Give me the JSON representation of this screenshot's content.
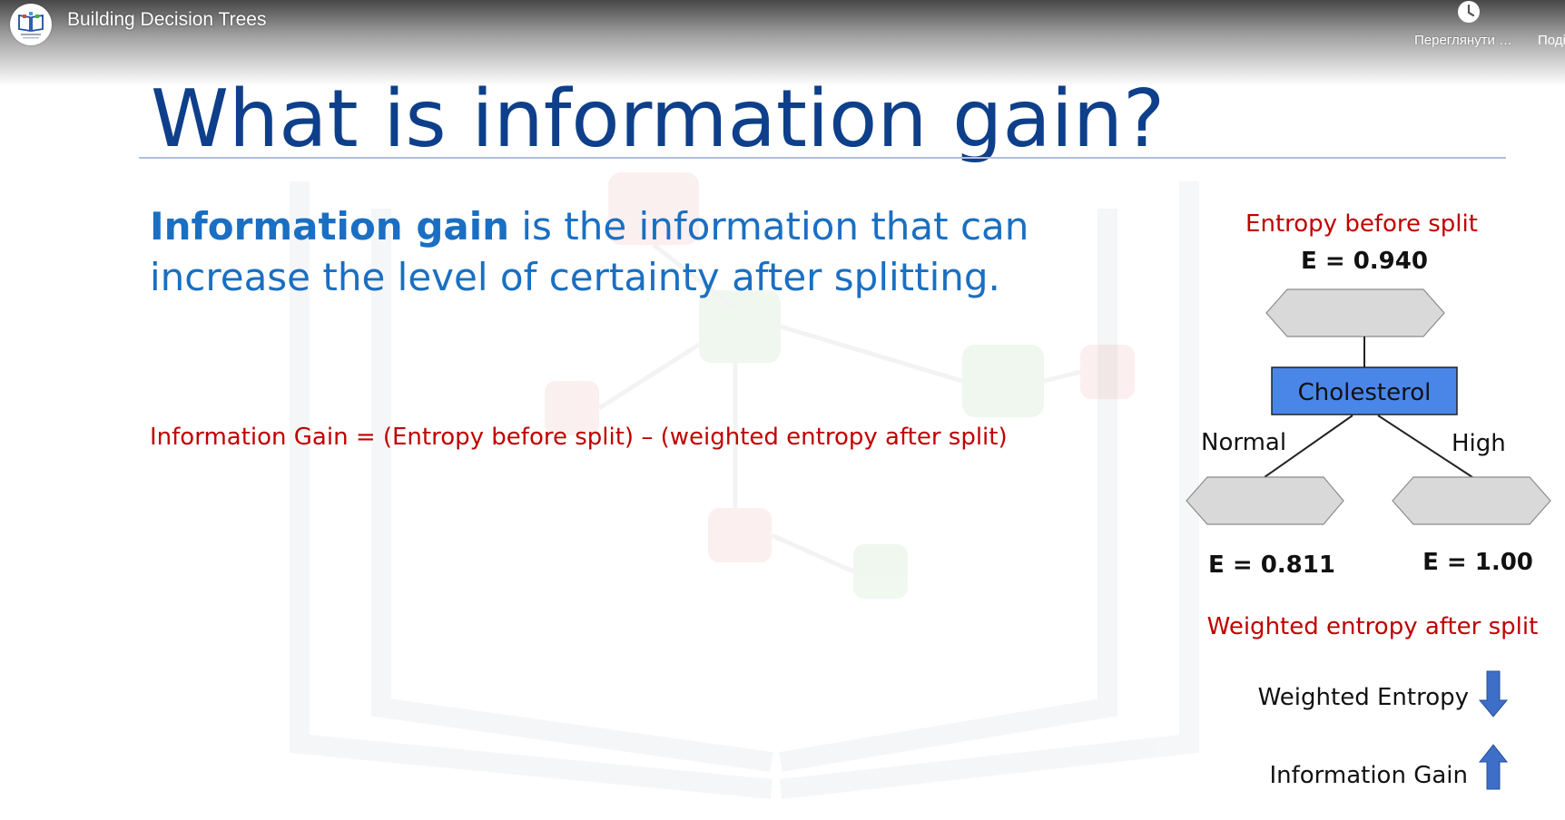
{
  "player": {
    "video_title": "Building Decision Trees",
    "watch_later_label": "Переглянути пізніше",
    "share_label": "Поділитися"
  },
  "slide": {
    "title": "What is information gain?",
    "definition_bold": "Information gain",
    "definition_rest": " is the information that can increase the level of certainty after splitting.",
    "formula": "Information Gain = (Entropy before split) – (weighted entropy after split)",
    "diagram": {
      "entropy_before_label": "Entropy before split",
      "entropy_before_value": "E = 0.940",
      "node_label": "Cholesterol",
      "branch_left": "Normal",
      "branch_right": "High",
      "left_entropy": "E = 0.811",
      "right_entropy": "E = 1.00",
      "weighted_after_label": "Weighted entropy after split",
      "weighted_entropy_label": "Weighted Entropy",
      "info_gain_label": "Information Gain"
    }
  },
  "colors": {
    "title": "#0e3f8a",
    "body_text": "#1a6fc2",
    "accent_red": "#c00000",
    "node_fill": "#4a86e8",
    "hexagon_fill": "#d9d9d9",
    "arrow": "#3d6fc8"
  },
  "icons": {
    "channel_logo": "book-logo-icon",
    "watch_later": "clock-icon",
    "weighted_entropy_arrow": "arrow-down-icon",
    "info_gain_arrow": "arrow-up-icon"
  }
}
